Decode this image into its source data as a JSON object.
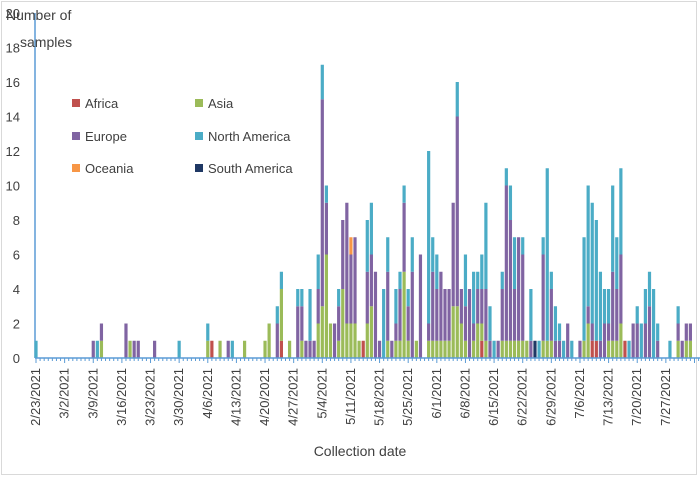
{
  "chart_data": {
    "type": "bar",
    "stacked": true,
    "title": "",
    "ylabel": "Number of samples",
    "xlabel": "Collection date",
    "ylim": [
      0,
      20
    ],
    "yticks": [
      0,
      2,
      4,
      6,
      8,
      10,
      12,
      14,
      16,
      18,
      20
    ],
    "start_date": "2/23/2021",
    "xtick_labels": [
      "2/23/2021",
      "3/2/2021",
      "3/9/2021",
      "3/16/2021",
      "3/23/2021",
      "3/30/2021",
      "4/6/2021",
      "4/13/2021",
      "4/20/2021",
      "4/27/2021",
      "5/4/2021",
      "5/11/2021",
      "5/18/2021",
      "5/25/2021",
      "6/1/2021",
      "6/8/2021",
      "6/15/2021",
      "6/22/2021",
      "6/29/2021",
      "7/6/2021",
      "7/13/2021",
      "7/20/2021",
      "7/27/2021"
    ],
    "legend_position": "top-left",
    "series": [
      {
        "name": "Africa",
        "color": "#c0504d"
      },
      {
        "name": "Asia",
        "color": "#9bbb59"
      },
      {
        "name": "Europe",
        "color": "#8064a2"
      },
      {
        "name": "North America",
        "color": "#4bacc6"
      },
      {
        "name": "Oceania",
        "color": "#f79646"
      },
      {
        "name": "South America",
        "color": "#1f3864"
      }
    ],
    "series_order": [
      "Africa",
      "Asia",
      "Europe",
      "North America",
      "Oceania",
      "South America"
    ],
    "days": [
      [
        0,
        0,
        0,
        1,
        0,
        0
      ],
      [
        0,
        0,
        0,
        0,
        0,
        0
      ],
      [
        0,
        0,
        0,
        0,
        0,
        0
      ],
      [
        0,
        0,
        0,
        0,
        0,
        0
      ],
      [
        0,
        0,
        0,
        0,
        0,
        0
      ],
      [
        0,
        0,
        0,
        0,
        0,
        0
      ],
      [
        0,
        0,
        0,
        0,
        0,
        0
      ],
      [
        0,
        0,
        0,
        0,
        0,
        0
      ],
      [
        0,
        0,
        0,
        0,
        0,
        0
      ],
      [
        0,
        0,
        0,
        0,
        0,
        0
      ],
      [
        0,
        0,
        0,
        0,
        0,
        0
      ],
      [
        0,
        0,
        0,
        0,
        0,
        0
      ],
      [
        0,
        0,
        0,
        0,
        0,
        0
      ],
      [
        0,
        0,
        0,
        0,
        0,
        0
      ],
      [
        0,
        0,
        1,
        0,
        0,
        0
      ],
      [
        0,
        0,
        0,
        1,
        0,
        0
      ],
      [
        0,
        1,
        1,
        0,
        0,
        0
      ],
      [
        0,
        0,
        0,
        0,
        0,
        0
      ],
      [
        0,
        0,
        0,
        0,
        0,
        0
      ],
      [
        0,
        0,
        0,
        0,
        0,
        0
      ],
      [
        0,
        0,
        0,
        0,
        0,
        0
      ],
      [
        0,
        0,
        0,
        0,
        0,
        0
      ],
      [
        0,
        0,
        2,
        0,
        0,
        0
      ],
      [
        0,
        1,
        0,
        0,
        0,
        0
      ],
      [
        0,
        0,
        1,
        0,
        0,
        0
      ],
      [
        0,
        0,
        1,
        0,
        0,
        0
      ],
      [
        0,
        0,
        0,
        0,
        0,
        0
      ],
      [
        0,
        0,
        0,
        0,
        0,
        0
      ],
      [
        0,
        0,
        0,
        0,
        0,
        0
      ],
      [
        0,
        0,
        1,
        0,
        0,
        0
      ],
      [
        0,
        0,
        0,
        0,
        0,
        0
      ],
      [
        0,
        0,
        0,
        0,
        0,
        0
      ],
      [
        0,
        0,
        0,
        0,
        0,
        0
      ],
      [
        0,
        0,
        0,
        0,
        0,
        0
      ],
      [
        0,
        0,
        0,
        0,
        0,
        0
      ],
      [
        0,
        0,
        0,
        1,
        0,
        0
      ],
      [
        0,
        0,
        0,
        0,
        0,
        0
      ],
      [
        0,
        0,
        0,
        0,
        0,
        0
      ],
      [
        0,
        0,
        0,
        0,
        0,
        0
      ],
      [
        0,
        0,
        0,
        0,
        0,
        0
      ],
      [
        0,
        0,
        0,
        0,
        0,
        0
      ],
      [
        0,
        0,
        0,
        0,
        0,
        0
      ],
      [
        0,
        1,
        0,
        1,
        0,
        0
      ],
      [
        1,
        0,
        0,
        0,
        0,
        0
      ],
      [
        0,
        0,
        0,
        0,
        0,
        0
      ],
      [
        0,
        1,
        0,
        0,
        0,
        0
      ],
      [
        0,
        0,
        0,
        0,
        0,
        0
      ],
      [
        0,
        0,
        1,
        0,
        0,
        0
      ],
      [
        0,
        0,
        0,
        1,
        0,
        0
      ],
      [
        0,
        0,
        0,
        0,
        0,
        0
      ],
      [
        0,
        0,
        0,
        0,
        0,
        0
      ],
      [
        0,
        1,
        0,
        0,
        0,
        0
      ],
      [
        0,
        0,
        0,
        0,
        0,
        0
      ],
      [
        0,
        0,
        0,
        0,
        0,
        0
      ],
      [
        0,
        0,
        0,
        0,
        0,
        0
      ],
      [
        0,
        0,
        0,
        0,
        0,
        0
      ],
      [
        0,
        1,
        0,
        0,
        0,
        0
      ],
      [
        0,
        2,
        0,
        0,
        0,
        0
      ],
      [
        0,
        0,
        0,
        0,
        0,
        0
      ],
      [
        0,
        0,
        2,
        1,
        0,
        0
      ],
      [
        1,
        3,
        0,
        1,
        0,
        0
      ],
      [
        0,
        0,
        0,
        0,
        0,
        0
      ],
      [
        0,
        1,
        0,
        0,
        0,
        0
      ],
      [
        0,
        0,
        0,
        0,
        0,
        0
      ],
      [
        0,
        0,
        3,
        1,
        0,
        0
      ],
      [
        0,
        1,
        2,
        1,
        0,
        0
      ],
      [
        0,
        0,
        1,
        0,
        0,
        0
      ],
      [
        0,
        0,
        1,
        3,
        0,
        0
      ],
      [
        0,
        0,
        1,
        0,
        0,
        0
      ],
      [
        0,
        2,
        2,
        2,
        0,
        0
      ],
      [
        0,
        3,
        12,
        2,
        0,
        0
      ],
      [
        0,
        6,
        3,
        1,
        0,
        0
      ],
      [
        0,
        2,
        0,
        0,
        0,
        0
      ],
      [
        0,
        0,
        2,
        0,
        0,
        0
      ],
      [
        0,
        1,
        2,
        1,
        0,
        0
      ],
      [
        0,
        4,
        4,
        0,
        0,
        0
      ],
      [
        0,
        2,
        7,
        0,
        0,
        0
      ],
      [
        0,
        2,
        4,
        0,
        1,
        0
      ],
      [
        0,
        2,
        5,
        0,
        0,
        0
      ],
      [
        0,
        1,
        0,
        0,
        0,
        0
      ],
      [
        1,
        0,
        0,
        0,
        0,
        0
      ],
      [
        0,
        2,
        3,
        3,
        0,
        0
      ],
      [
        0,
        3,
        3,
        3,
        0,
        0
      ],
      [
        0,
        0,
        5,
        0,
        0,
        0
      ],
      [
        0,
        0,
        1,
        0,
        0,
        0
      ],
      [
        0,
        0,
        0,
        4,
        0,
        0
      ],
      [
        0,
        1,
        4,
        2,
        0,
        0
      ],
      [
        0,
        0,
        1,
        0,
        0,
        0
      ],
      [
        0,
        1,
        1,
        2,
        0,
        0
      ],
      [
        0,
        1,
        3,
        1,
        0,
        0
      ],
      [
        0,
        5,
        4,
        1,
        0,
        0
      ],
      [
        0,
        1,
        2,
        1,
        0,
        0
      ],
      [
        0,
        0,
        5,
        2,
        0,
        0
      ],
      [
        0,
        1,
        0,
        0,
        0,
        0
      ],
      [
        0,
        0,
        6,
        0,
        0,
        0
      ],
      [
        0,
        0,
        0,
        0,
        0,
        0
      ],
      [
        0,
        1,
        1,
        10,
        0,
        0
      ],
      [
        0,
        1,
        4,
        2,
        0,
        0
      ],
      [
        0,
        1,
        3,
        2,
        0,
        0
      ],
      [
        0,
        1,
        4,
        0,
        0,
        0
      ],
      [
        0,
        1,
        3,
        0,
        0,
        0
      ],
      [
        0,
        1,
        3,
        0,
        0,
        0
      ],
      [
        0,
        3,
        6,
        0,
        0,
        0
      ],
      [
        0,
        3,
        11,
        2,
        0,
        0
      ],
      [
        0,
        2,
        2,
        0,
        0,
        0
      ],
      [
        0,
        1,
        2,
        3,
        0,
        0
      ],
      [
        0,
        0,
        4,
        0,
        0,
        0
      ],
      [
        0,
        1,
        1,
        3,
        0,
        0
      ],
      [
        0,
        2,
        2,
        1,
        0,
        0
      ],
      [
        1,
        1,
        2,
        2,
        0,
        0
      ],
      [
        0,
        1,
        3,
        5,
        0,
        0
      ],
      [
        0,
        0,
        1,
        2,
        0,
        0
      ],
      [
        0,
        0,
        0,
        1,
        0,
        0
      ],
      [
        0,
        0,
        1,
        0,
        0,
        0
      ],
      [
        0,
        1,
        3,
        1,
        0,
        0
      ],
      [
        0,
        1,
        9,
        1,
        0,
        0
      ],
      [
        0,
        1,
        7,
        2,
        0,
        0
      ],
      [
        0,
        1,
        3,
        3,
        0,
        0
      ],
      [
        0,
        1,
        6,
        0,
        0,
        0
      ],
      [
        0,
        1,
        5,
        1,
        0,
        0
      ],
      [
        0,
        1,
        0,
        0,
        0,
        0
      ],
      [
        0,
        0,
        1,
        3,
        0,
        0
      ],
      [
        0,
        0,
        0,
        0,
        0,
        1
      ],
      [
        0,
        0,
        0,
        1,
        0,
        0
      ],
      [
        0,
        1,
        5,
        1,
        0,
        0
      ],
      [
        0,
        1,
        0,
        10,
        0,
        0
      ],
      [
        0,
        1,
        3,
        1,
        0,
        0
      ],
      [
        0,
        0,
        1,
        2,
        0,
        0
      ],
      [
        0,
        0,
        1,
        1,
        0,
        0
      ],
      [
        0,
        0,
        0,
        1,
        0,
        0
      ],
      [
        0,
        0,
        2,
        0,
        0,
        0
      ],
      [
        0,
        0,
        0,
        1,
        0,
        0
      ],
      [
        0,
        0,
        0,
        0,
        0,
        0
      ],
      [
        0,
        0,
        1,
        0,
        0,
        0
      ],
      [
        0,
        1,
        0,
        6,
        0,
        0
      ],
      [
        0,
        2,
        1,
        7,
        0,
        0
      ],
      [
        1,
        0,
        1,
        7,
        0,
        0
      ],
      [
        1,
        0,
        0,
        7,
        0,
        0
      ],
      [
        0,
        0,
        1,
        4,
        0,
        0
      ],
      [
        0,
        0,
        2,
        2,
        0,
        0
      ],
      [
        0,
        1,
        1,
        2,
        0,
        0
      ],
      [
        0,
        1,
        4,
        5,
        0,
        0
      ],
      [
        0,
        1,
        3,
        3,
        0,
        0
      ],
      [
        0,
        2,
        4,
        5,
        0,
        0
      ],
      [
        1,
        0,
        0,
        0,
        0,
        0
      ],
      [
        0,
        0,
        0,
        1,
        0,
        0
      ],
      [
        0,
        0,
        2,
        0,
        0,
        0
      ],
      [
        0,
        0,
        2,
        1,
        0,
        0
      ],
      [
        0,
        0,
        0,
        2,
        0,
        0
      ],
      [
        0,
        0,
        2,
        2,
        0,
        0
      ],
      [
        0,
        0,
        3,
        2,
        0,
        0
      ],
      [
        0,
        0,
        0,
        4,
        0,
        0
      ],
      [
        0,
        0,
        1,
        1,
        0,
        0
      ],
      [
        0,
        0,
        0,
        0,
        0,
        0
      ],
      [
        0,
        0,
        0,
        0,
        0,
        0
      ],
      [
        0,
        0,
        0,
        1,
        0,
        0
      ],
      [
        0,
        0,
        0,
        0,
        0,
        0
      ],
      [
        0,
        1,
        1,
        1,
        0,
        0
      ],
      [
        0,
        0,
        1,
        0,
        0,
        0
      ],
      [
        0,
        1,
        1,
        0,
        0,
        0
      ],
      [
        0,
        1,
        1,
        0,
        0,
        0
      ],
      [
        0,
        0,
        0,
        0,
        0,
        0
      ],
      [
        0,
        0,
        0,
        0,
        0,
        0
      ],
      [
        0,
        0,
        0,
        0,
        0,
        0
      ],
      [
        0,
        0,
        0,
        0,
        0,
        0
      ],
      [
        0,
        0,
        0,
        0,
        0,
        0
      ]
    ]
  }
}
